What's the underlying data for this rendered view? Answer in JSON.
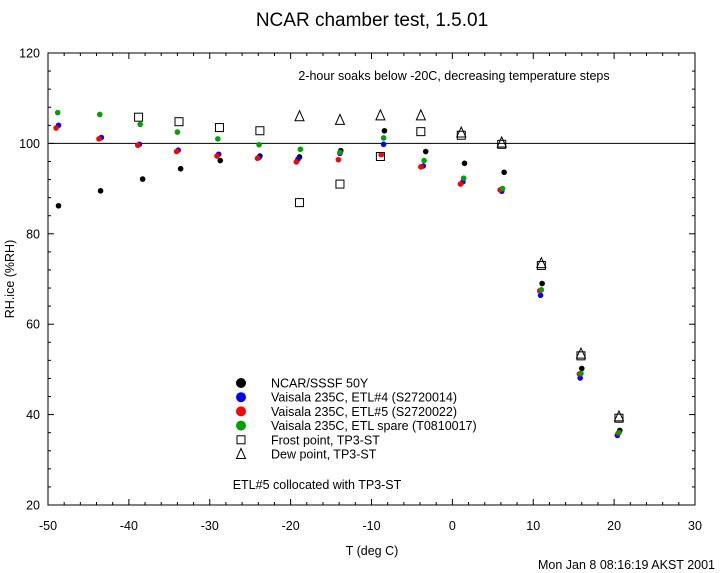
{
  "chart_data": {
    "type": "scatter",
    "title": "NCAR chamber test,  1.5.01",
    "subtitle": "2-hour soaks below -20C, decreasing temperature steps",
    "xlabel": "T (deg C)",
    "ylabel": "RH.ice (%RH)",
    "xlim": [
      -50,
      30
    ],
    "ylim": [
      20,
      120
    ],
    "x_ticks": [
      "-50",
      "-40",
      "-30",
      "-20",
      "-10",
      "0",
      "10",
      "20",
      "30"
    ],
    "y_ticks": [
      "20",
      "40",
      "60",
      "80",
      "100",
      "120"
    ],
    "reference_line": 100,
    "annotation": "ETL#5 collocated with TP3-ST",
    "timestamp": "Mon Jan  8 08:16:19 AKST 2001",
    "series": [
      {
        "name": "NCAR/SSSF 50Y",
        "marker": "dot",
        "color": "#000000",
        "x": [
          -48.7,
          -43.5,
          -38.3,
          -33.6,
          -28.7,
          -23.8,
          -18.9,
          -13.8,
          -8.4,
          -3.3,
          1.5,
          6.4,
          11.1,
          16.0,
          20.7
        ],
        "y": [
          86.2,
          89.5,
          92.1,
          94.4,
          96.2,
          97.2,
          97.0,
          98.4,
          102.8,
          98.2,
          95.6,
          93.6,
          69.0,
          50.2,
          36.5
        ]
      },
      {
        "name": "Vaisala 235C, ETL#4 (S2720014)",
        "marker": "dot",
        "color": "#0000ff",
        "x": [
          -48.7,
          -43.4,
          -38.7,
          -33.9,
          -28.9,
          -23.9,
          -19.1,
          -13.9,
          -8.5,
          -3.6,
          1.3,
          6.1,
          10.9,
          15.8,
          20.4
        ],
        "y": [
          104.0,
          101.3,
          99.8,
          98.5,
          97.6,
          96.9,
          96.5,
          97.8,
          99.8,
          95.0,
          91.5,
          89.4,
          66.4,
          48.1,
          35.4
        ]
      },
      {
        "name": "Vaisala 235C, ETL#5 (S2720022)",
        "marker": "dot",
        "color": "#ff0000",
        "x": [
          -49.0,
          -43.7,
          -38.9,
          -34.1,
          -29.1,
          -24.1,
          -19.3,
          -14.1,
          -8.8,
          -3.9,
          1.0,
          5.9,
          10.8,
          15.7,
          20.5
        ],
        "y": [
          103.4,
          101.0,
          99.6,
          98.2,
          97.2,
          96.7,
          95.9,
          96.4,
          97.5,
          94.8,
          91.0,
          89.7,
          67.4,
          49.0,
          35.9
        ]
      },
      {
        "name": "Vaisala 235C, ETL spare (T0810017)",
        "marker": "dot",
        "color": "#00a000",
        "x": [
          -48.8,
          -43.6,
          -38.6,
          -34.0,
          -29.0,
          -23.9,
          -18.8,
          -13.9,
          -8.5,
          -3.5,
          1.4,
          6.2,
          11.0,
          15.9,
          20.6
        ],
        "y": [
          106.8,
          106.4,
          104.2,
          102.5,
          101.0,
          99.7,
          98.7,
          98.0,
          101.2,
          96.2,
          92.3,
          90.0,
          67.6,
          49.1,
          36.0
        ]
      },
      {
        "name": "Frost point, TP3-ST",
        "marker": "square",
        "color": "#000000",
        "x": [
          -38.8,
          -33.8,
          -28.8,
          -23.8,
          -18.9,
          -13.9,
          -8.9,
          -3.9,
          1.1,
          6.1,
          11.0,
          15.9,
          20.6
        ],
        "y": [
          105.8,
          104.8,
          103.5,
          102.8,
          86.9,
          91.0,
          97.1,
          102.6,
          101.8,
          99.8,
          73.0,
          53.0,
          39.2
        ]
      },
      {
        "name": "Dew point, TP3-ST",
        "marker": "triangle",
        "color": "#000000",
        "x": [
          -18.9,
          -13.9,
          -8.9,
          -3.9,
          1.1,
          6.1,
          11.0,
          15.9,
          20.6
        ],
        "y": [
          106.0,
          105.2,
          106.2,
          106.2,
          102.4,
          100.2,
          73.5,
          53.5,
          39.6
        ]
      }
    ]
  }
}
